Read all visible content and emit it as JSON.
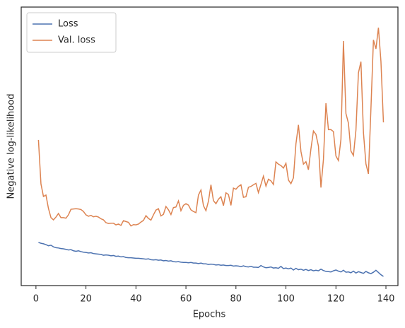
{
  "chart_data": {
    "type": "line",
    "x_label": "Epochs",
    "y_label": "Negative log-likelihood",
    "x": [
      1,
      2,
      3,
      4,
      5,
      6,
      7,
      8,
      9,
      10,
      11,
      12,
      13,
      14,
      15,
      16,
      17,
      18,
      19,
      20,
      21,
      22,
      23,
      24,
      25,
      26,
      27,
      28,
      29,
      30,
      31,
      32,
      33,
      34,
      35,
      36,
      37,
      38,
      39,
      40,
      41,
      42,
      43,
      44,
      45,
      46,
      47,
      48,
      49,
      50,
      51,
      52,
      53,
      54,
      55,
      56,
      57,
      58,
      59,
      60,
      61,
      62,
      63,
      64,
      65,
      66,
      67,
      68,
      69,
      70,
      71,
      72,
      73,
      74,
      75,
      76,
      77,
      78,
      79,
      80,
      81,
      82,
      83,
      84,
      85,
      86,
      87,
      88,
      89,
      90,
      91,
      92,
      93,
      94,
      95,
      96,
      97,
      98,
      99,
      100,
      101,
      102,
      103,
      104,
      105,
      106,
      107,
      108,
      109,
      110,
      111,
      112,
      113,
      114,
      115,
      116,
      117,
      118,
      119,
      120,
      121,
      122,
      123,
      124,
      125,
      126,
      127,
      128,
      129,
      130,
      131,
      132,
      133,
      134,
      135,
      136,
      137,
      138,
      139
    ],
    "series": [
      {
        "name": "Loss",
        "color": "#4c72b0",
        "values": [
          15.5,
          15.2,
          15,
          14.7,
          14.3,
          14.5,
          13.9,
          13.6,
          13.5,
          13.3,
          13.2,
          13,
          12.8,
          12.9,
          12.5,
          12.3,
          12.5,
          12.2,
          12,
          11.9,
          11.7,
          11.8,
          11.5,
          11.4,
          11.3,
          11.2,
          10.9,
          11,
          10.9,
          10.7,
          10.8,
          10.5,
          10.6,
          10.3,
          10.4,
          10.1,
          10,
          10,
          9.9,
          9.8,
          9.8,
          9.7,
          9.6,
          9.5,
          9.6,
          9.3,
          9.2,
          9.3,
          9.1,
          9.2,
          8.9,
          9,
          8.8,
          8.9,
          8.6,
          8.5,
          8.6,
          8.4,
          8.3,
          8.3,
          8.2,
          8.3,
          8.1,
          8.1,
          7.9,
          8.1,
          7.8,
          7.8,
          7.6,
          7.7,
          7.6,
          7.4,
          7.5,
          7.3,
          7.4,
          7.2,
          7.2,
          7.3,
          7,
          7.1,
          7,
          6.8,
          7.1,
          6.8,
          6.7,
          6.9,
          6.6,
          6.6,
          6.5,
          7.2,
          6.7,
          6.4,
          6.5,
          6.7,
          6.3,
          6.4,
          6.2,
          6.9,
          6.1,
          6.3,
          6,
          6.3,
          5.6,
          6.2,
          5.7,
          5.9,
          5.5,
          5.8,
          5.4,
          5.7,
          5.3,
          5.5,
          5.3,
          5.9,
          5.4,
          5.1,
          5,
          4.9,
          5.3,
          5.6,
          5.2,
          4.9,
          5.5,
          4.8,
          4.9,
          4.6,
          5.2,
          4.5,
          5,
          4.7,
          4.4,
          5.1,
          4.6,
          4.3,
          4.8,
          5.5,
          4.7,
          3.9,
          3.3
        ]
      },
      {
        "name": "Val. loss",
        "color": "#dd8452",
        "values": [
          52.3,
          36.5,
          32,
          32.5,
          27.7,
          24.4,
          23.6,
          24.6,
          25.9,
          24.4,
          24.4,
          24.2,
          25.4,
          27.4,
          27.5,
          27.6,
          27.5,
          27.3,
          26.6,
          25.4,
          24.9,
          25.2,
          24.7,
          24.9,
          24.6,
          24,
          23.6,
          22.6,
          22.3,
          22.4,
          22.4,
          21.8,
          22.1,
          21.6,
          23.3,
          23,
          22.7,
          21.4,
          21.9,
          21.8,
          22.1,
          22.8,
          23.4,
          25.1,
          24.1,
          23.5,
          25.4,
          27.1,
          27.6,
          25,
          25.6,
          28.4,
          27.2,
          25.5,
          28,
          28.2,
          30.4,
          26.9,
          28.8,
          29.4,
          28.9,
          27.2,
          26.6,
          26.2,
          32.5,
          34.3,
          28.7,
          26.9,
          30.3,
          36.2,
          30.5,
          29.4,
          31,
          31.9,
          28.7,
          33.3,
          32.7,
          28.8,
          35,
          34.6,
          35.6,
          36.2,
          31.7,
          31.9,
          35.3,
          35.6,
          36.2,
          36.7,
          33.4,
          36.3,
          39.3,
          35.7,
          38.2,
          37.6,
          36.3,
          44.4,
          43.6,
          43.1,
          42.2,
          43.9,
          37.9,
          36.6,
          38.7,
          50.9,
          57.7,
          48.2,
          43.6,
          44.5,
          41.6,
          49.1,
          55.5,
          54.3,
          50.1,
          35.2,
          45.3,
          65.5,
          56,
          56,
          55.3,
          46.5,
          44.9,
          52.5,
          87.8,
          61.8,
          58.3,
          48.3,
          46.7,
          55.8,
          76.4,
          80.4,
          55,
          43.7,
          40.1,
          63.5,
          88.2,
          85,
          92.6,
          80.5,
          58.6
        ]
      }
    ],
    "xlim": [
      -5.9,
      144.8
    ],
    "xticks": [
      0,
      20,
      40,
      60,
      80,
      100,
      120,
      140
    ],
    "ylim": [
      0,
      100
    ],
    "legend": "upper left"
  }
}
